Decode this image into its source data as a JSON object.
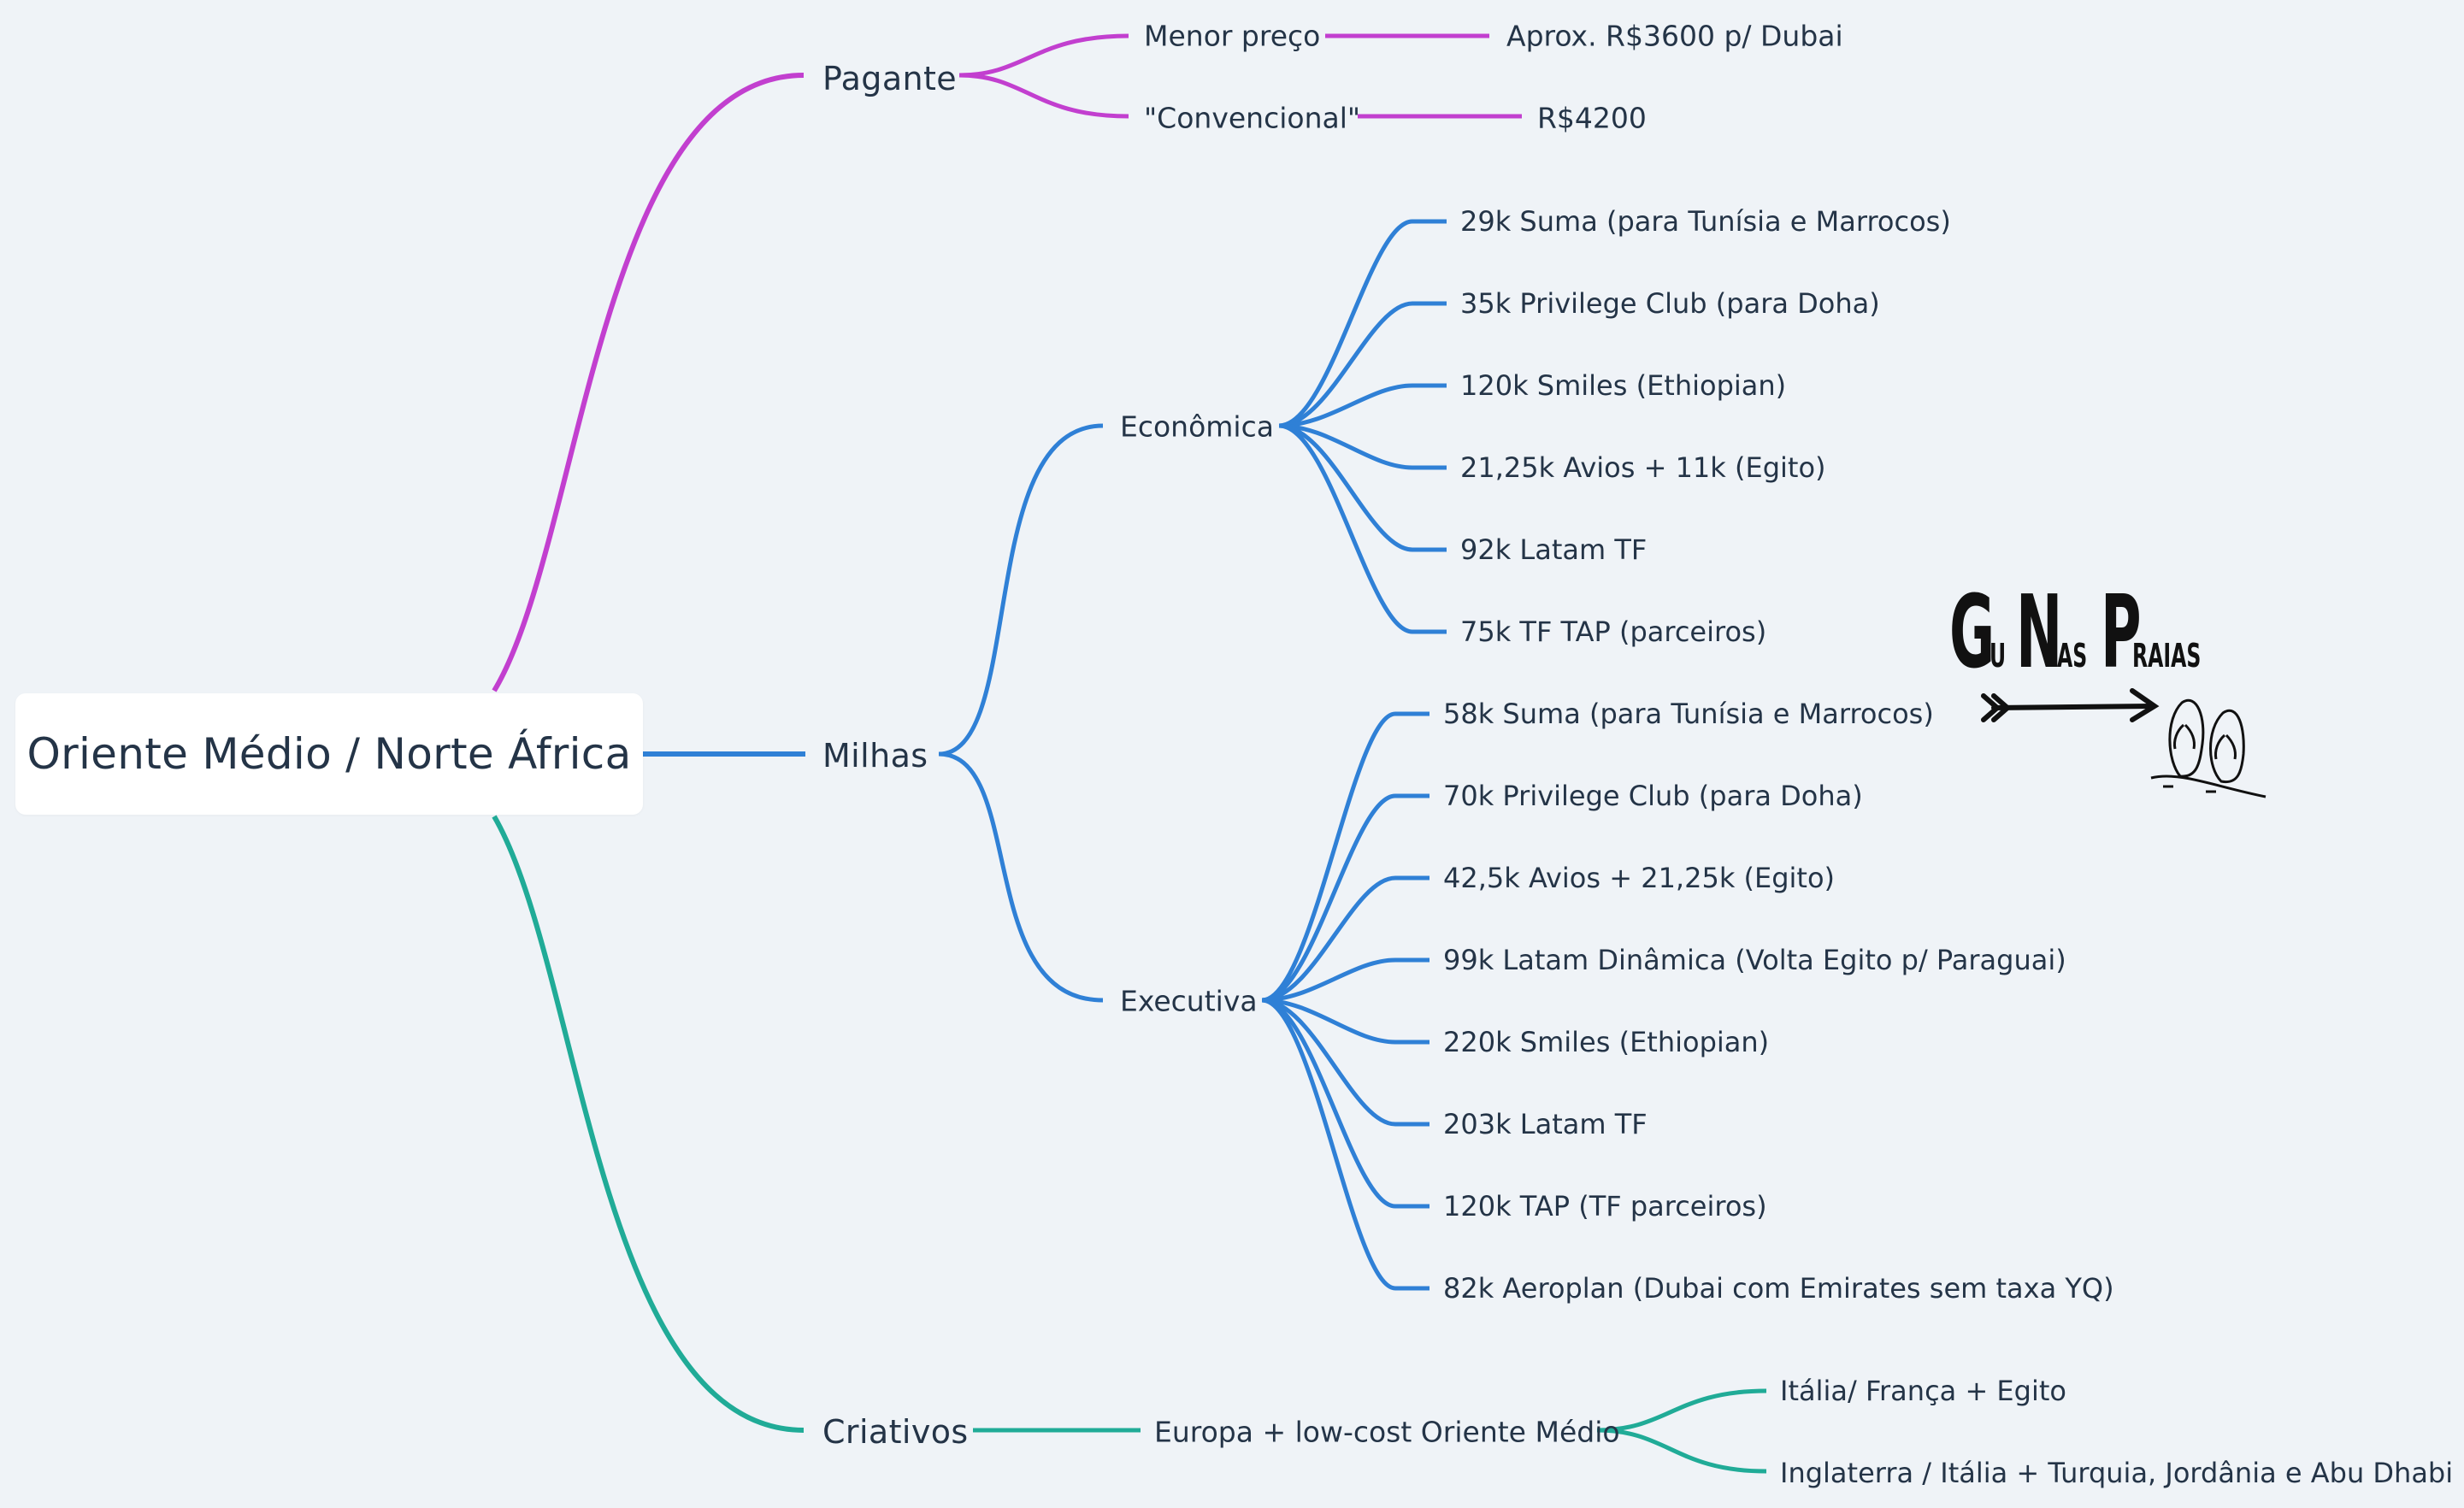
{
  "root": {
    "label": "Oriente Médio / Norte África"
  },
  "colors": {
    "pagante": "#c23fcf",
    "milhas": "#2f80d6",
    "criativos": "#20ab97",
    "background": "#eff3f7",
    "text": "#243447"
  },
  "branches": {
    "pagante": {
      "label": "Pagante",
      "items": [
        {
          "label": "Menor preço",
          "value": "Aprox. R$3600 p/ Dubai"
        },
        {
          "label": "\"Convencional\"",
          "value": "R$4200"
        }
      ]
    },
    "milhas": {
      "label": "Milhas",
      "economica": {
        "label": "Econômica",
        "items": [
          "29k Suma (para Tunísia e Marrocos)",
          "35k Privilege Club (para Doha)",
          "120k Smiles (Ethiopian)",
          "21,25k Avios + 11k (Egito)",
          "92k Latam TF",
          "75k TF TAP (parceiros)"
        ]
      },
      "executiva": {
        "label": "Executiva",
        "items": [
          "58k Suma (para Tunísia e Marrocos)",
          "70k Privilege Club (para Doha)",
          "42,5k Avios + 21,25k (Egito)",
          "99k Latam Dinâmica (Volta Egito p/ Paraguai)",
          "220k Smiles  (Ethiopian)",
          "203k Latam  TF",
          "120k TAP (TF parceiros)",
          "82k Aeroplan (Dubai com Emirates sem taxa YQ)"
        ]
      }
    },
    "criativos": {
      "label": "Criativos",
      "mid": "Europa + low-cost Oriente Médio",
      "items": [
        "Itália/ França + Egito",
        "Inglaterra / Itália + Turquia, Jordânia e Abu Dhabi"
      ]
    }
  },
  "logo": {
    "g": "G",
    "u": "U",
    "n": "N",
    "as": "AS",
    "p": "P",
    "raias": "RAIAS",
    "icon": "flip-flops-icon"
  }
}
